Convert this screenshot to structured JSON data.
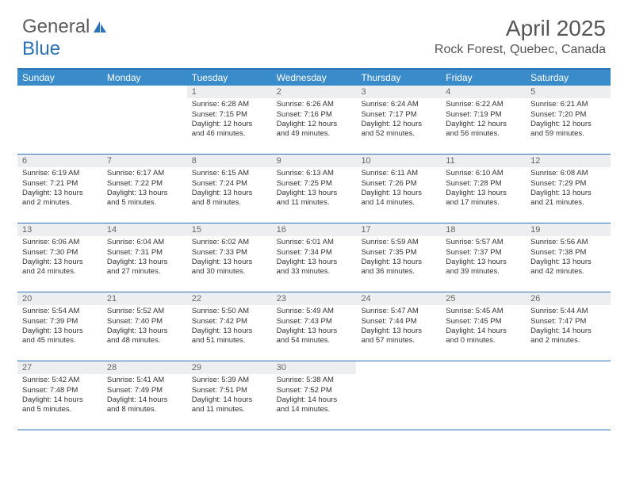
{
  "brand": {
    "part1": "General",
    "part2": "Blue"
  },
  "title": "April 2025",
  "location": "Rock Forest, Quebec, Canada",
  "colors": {
    "header_bg": "#3a8bc9",
    "border": "#2a72b5",
    "daynum_bg": "#eceef0",
    "text": "#333333",
    "muted": "#666666"
  },
  "dayNames": [
    "Sunday",
    "Monday",
    "Tuesday",
    "Wednesday",
    "Thursday",
    "Friday",
    "Saturday"
  ],
  "weeks": [
    [
      {
        "empty": true
      },
      {
        "empty": true
      },
      {
        "day": "1",
        "sunrise": "Sunrise: 6:28 AM",
        "sunset": "Sunset: 7:15 PM",
        "daylight1": "Daylight: 12 hours",
        "daylight2": "and 46 minutes."
      },
      {
        "day": "2",
        "sunrise": "Sunrise: 6:26 AM",
        "sunset": "Sunset: 7:16 PM",
        "daylight1": "Daylight: 12 hours",
        "daylight2": "and 49 minutes."
      },
      {
        "day": "3",
        "sunrise": "Sunrise: 6:24 AM",
        "sunset": "Sunset: 7:17 PM",
        "daylight1": "Daylight: 12 hours",
        "daylight2": "and 52 minutes."
      },
      {
        "day": "4",
        "sunrise": "Sunrise: 6:22 AM",
        "sunset": "Sunset: 7:19 PM",
        "daylight1": "Daylight: 12 hours",
        "daylight2": "and 56 minutes."
      },
      {
        "day": "5",
        "sunrise": "Sunrise: 6:21 AM",
        "sunset": "Sunset: 7:20 PM",
        "daylight1": "Daylight: 12 hours",
        "daylight2": "and 59 minutes."
      }
    ],
    [
      {
        "day": "6",
        "sunrise": "Sunrise: 6:19 AM",
        "sunset": "Sunset: 7:21 PM",
        "daylight1": "Daylight: 13 hours",
        "daylight2": "and 2 minutes."
      },
      {
        "day": "7",
        "sunrise": "Sunrise: 6:17 AM",
        "sunset": "Sunset: 7:22 PM",
        "daylight1": "Daylight: 13 hours",
        "daylight2": "and 5 minutes."
      },
      {
        "day": "8",
        "sunrise": "Sunrise: 6:15 AM",
        "sunset": "Sunset: 7:24 PM",
        "daylight1": "Daylight: 13 hours",
        "daylight2": "and 8 minutes."
      },
      {
        "day": "9",
        "sunrise": "Sunrise: 6:13 AM",
        "sunset": "Sunset: 7:25 PM",
        "daylight1": "Daylight: 13 hours",
        "daylight2": "and 11 minutes."
      },
      {
        "day": "10",
        "sunrise": "Sunrise: 6:11 AM",
        "sunset": "Sunset: 7:26 PM",
        "daylight1": "Daylight: 13 hours",
        "daylight2": "and 14 minutes."
      },
      {
        "day": "11",
        "sunrise": "Sunrise: 6:10 AM",
        "sunset": "Sunset: 7:28 PM",
        "daylight1": "Daylight: 13 hours",
        "daylight2": "and 17 minutes."
      },
      {
        "day": "12",
        "sunrise": "Sunrise: 6:08 AM",
        "sunset": "Sunset: 7:29 PM",
        "daylight1": "Daylight: 13 hours",
        "daylight2": "and 21 minutes."
      }
    ],
    [
      {
        "day": "13",
        "sunrise": "Sunrise: 6:06 AM",
        "sunset": "Sunset: 7:30 PM",
        "daylight1": "Daylight: 13 hours",
        "daylight2": "and 24 minutes."
      },
      {
        "day": "14",
        "sunrise": "Sunrise: 6:04 AM",
        "sunset": "Sunset: 7:31 PM",
        "daylight1": "Daylight: 13 hours",
        "daylight2": "and 27 minutes."
      },
      {
        "day": "15",
        "sunrise": "Sunrise: 6:02 AM",
        "sunset": "Sunset: 7:33 PM",
        "daylight1": "Daylight: 13 hours",
        "daylight2": "and 30 minutes."
      },
      {
        "day": "16",
        "sunrise": "Sunrise: 6:01 AM",
        "sunset": "Sunset: 7:34 PM",
        "daylight1": "Daylight: 13 hours",
        "daylight2": "and 33 minutes."
      },
      {
        "day": "17",
        "sunrise": "Sunrise: 5:59 AM",
        "sunset": "Sunset: 7:35 PM",
        "daylight1": "Daylight: 13 hours",
        "daylight2": "and 36 minutes."
      },
      {
        "day": "18",
        "sunrise": "Sunrise: 5:57 AM",
        "sunset": "Sunset: 7:37 PM",
        "daylight1": "Daylight: 13 hours",
        "daylight2": "and 39 minutes."
      },
      {
        "day": "19",
        "sunrise": "Sunrise: 5:56 AM",
        "sunset": "Sunset: 7:38 PM",
        "daylight1": "Daylight: 13 hours",
        "daylight2": "and 42 minutes."
      }
    ],
    [
      {
        "day": "20",
        "sunrise": "Sunrise: 5:54 AM",
        "sunset": "Sunset: 7:39 PM",
        "daylight1": "Daylight: 13 hours",
        "daylight2": "and 45 minutes."
      },
      {
        "day": "21",
        "sunrise": "Sunrise: 5:52 AM",
        "sunset": "Sunset: 7:40 PM",
        "daylight1": "Daylight: 13 hours",
        "daylight2": "and 48 minutes."
      },
      {
        "day": "22",
        "sunrise": "Sunrise: 5:50 AM",
        "sunset": "Sunset: 7:42 PM",
        "daylight1": "Daylight: 13 hours",
        "daylight2": "and 51 minutes."
      },
      {
        "day": "23",
        "sunrise": "Sunrise: 5:49 AM",
        "sunset": "Sunset: 7:43 PM",
        "daylight1": "Daylight: 13 hours",
        "daylight2": "and 54 minutes."
      },
      {
        "day": "24",
        "sunrise": "Sunrise: 5:47 AM",
        "sunset": "Sunset: 7:44 PM",
        "daylight1": "Daylight: 13 hours",
        "daylight2": "and 57 minutes."
      },
      {
        "day": "25",
        "sunrise": "Sunrise: 5:45 AM",
        "sunset": "Sunset: 7:45 PM",
        "daylight1": "Daylight: 14 hours",
        "daylight2": "and 0 minutes."
      },
      {
        "day": "26",
        "sunrise": "Sunrise: 5:44 AM",
        "sunset": "Sunset: 7:47 PM",
        "daylight1": "Daylight: 14 hours",
        "daylight2": "and 2 minutes."
      }
    ],
    [
      {
        "day": "27",
        "sunrise": "Sunrise: 5:42 AM",
        "sunset": "Sunset: 7:48 PM",
        "daylight1": "Daylight: 14 hours",
        "daylight2": "and 5 minutes."
      },
      {
        "day": "28",
        "sunrise": "Sunrise: 5:41 AM",
        "sunset": "Sunset: 7:49 PM",
        "daylight1": "Daylight: 14 hours",
        "daylight2": "and 8 minutes."
      },
      {
        "day": "29",
        "sunrise": "Sunrise: 5:39 AM",
        "sunset": "Sunset: 7:51 PM",
        "daylight1": "Daylight: 14 hours",
        "daylight2": "and 11 minutes."
      },
      {
        "day": "30",
        "sunrise": "Sunrise: 5:38 AM",
        "sunset": "Sunset: 7:52 PM",
        "daylight1": "Daylight: 14 hours",
        "daylight2": "and 14 minutes."
      },
      {
        "empty": true
      },
      {
        "empty": true
      },
      {
        "empty": true
      }
    ]
  ]
}
